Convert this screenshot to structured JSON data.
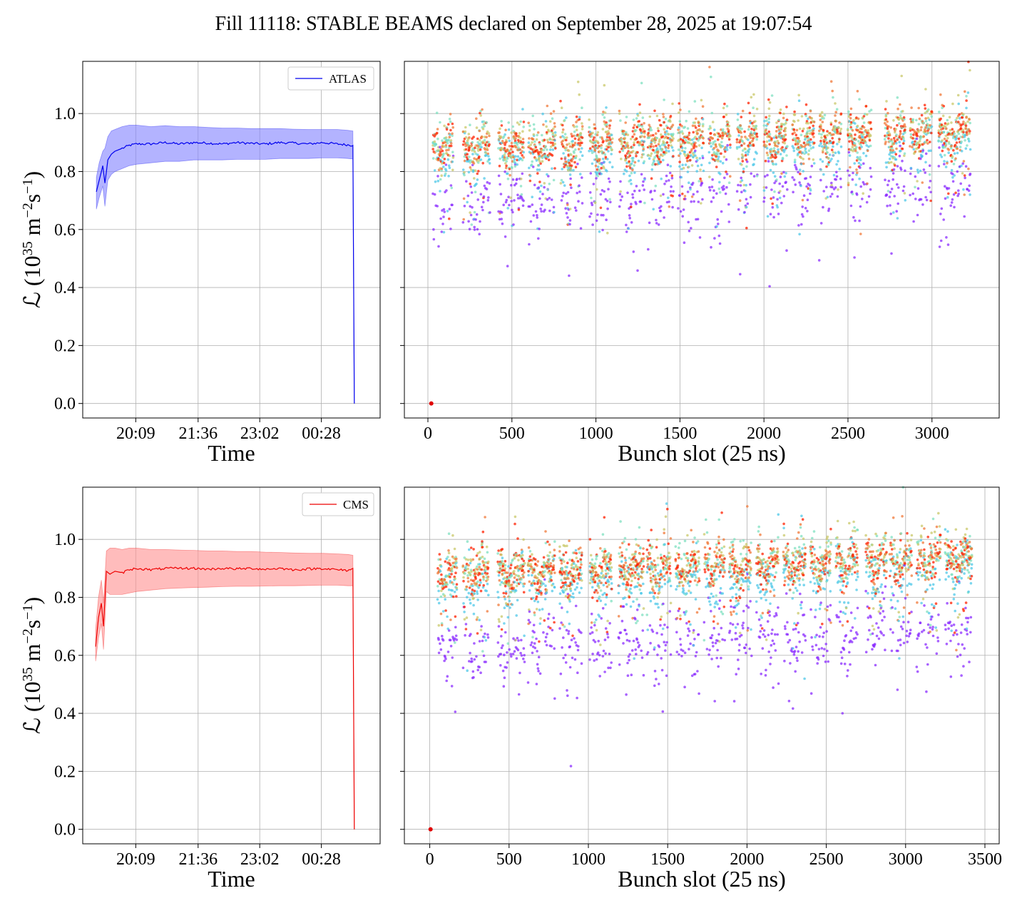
{
  "figure": {
    "title": "Fill 11118: STABLE BEAMS declared on September 28, 2025 at 19:07:54"
  },
  "chart_data": [
    {
      "id": "atlas-time",
      "type": "line",
      "xlabel": "Time",
      "ylabel": "ℒ (10^35 m^−2s^−1)",
      "ylabel_parts": {
        "main": "ℒ (10",
        "sup1": "35",
        "mid": " m",
        "sup2": "−2",
        "mid2": "s",
        "sup3": "−1",
        "end": ")"
      },
      "x_ticks": [
        "20:09",
        "21:36",
        "23:02",
        "00:28"
      ],
      "x_tick_minutes": [
        1209,
        1296,
        1382,
        1468
      ],
      "xlim_minutes": [
        1135,
        1550
      ],
      "ylim": [
        -0.05,
        1.18
      ],
      "y_ticks": [
        "0.0",
        "0.2",
        "0.4",
        "0.6",
        "0.8",
        "1.0"
      ],
      "y_tick_values": [
        0.0,
        0.2,
        0.4,
        0.6,
        0.8,
        1.0
      ],
      "grid": true,
      "legend": {
        "label": "ATLAS",
        "placement": "top-right"
      },
      "series": [
        {
          "name": "ATLAS",
          "color": "#0000ee",
          "band_color": "#8080ff",
          "x_minutes": [
            1154,
            1158,
            1163,
            1166,
            1170,
            1175,
            1180,
            1190,
            1200,
            1210,
            1230,
            1250,
            1270,
            1290,
            1310,
            1330,
            1350,
            1370,
            1390,
            1410,
            1430,
            1450,
            1470,
            1490,
            1505,
            1512,
            1514
          ],
          "y": [
            0.73,
            0.77,
            0.82,
            0.76,
            0.84,
            0.86,
            0.87,
            0.88,
            0.89,
            0.895,
            0.895,
            0.9,
            0.895,
            0.9,
            0.898,
            0.895,
            0.9,
            0.897,
            0.895,
            0.9,
            0.898,
            0.895,
            0.9,
            0.895,
            0.892,
            0.89,
            0.0
          ],
          "band_upper": [
            0.78,
            0.83,
            0.87,
            0.88,
            0.92,
            0.94,
            0.945,
            0.955,
            0.96,
            0.96,
            0.955,
            0.958,
            0.955,
            0.955,
            0.952,
            0.95,
            0.95,
            0.948,
            0.948,
            0.948,
            0.946,
            0.945,
            0.945,
            0.945,
            0.942,
            0.94,
            0.0
          ],
          "band_lower": [
            0.67,
            0.71,
            0.75,
            0.68,
            0.77,
            0.79,
            0.8,
            0.81,
            0.82,
            0.825,
            0.83,
            0.835,
            0.835,
            0.84,
            0.84,
            0.84,
            0.842,
            0.842,
            0.842,
            0.845,
            0.845,
            0.845,
            0.847,
            0.847,
            0.845,
            0.843,
            0.0
          ]
        }
      ]
    },
    {
      "id": "atlas-bunch",
      "type": "scatter",
      "xlabel": "Bunch slot (25 ns)",
      "x_ticks": [
        "0",
        "500",
        "1000",
        "1500",
        "2000",
        "2500",
        "3000"
      ],
      "x_tick_values": [
        0,
        500,
        1000,
        1500,
        2000,
        2500,
        3000
      ],
      "xlim": [
        -140,
        3400
      ],
      "ylim": [
        -0.05,
        1.18
      ],
      "grid": true,
      "x_range_filled": [
        30,
        3230
      ],
      "trains": [
        [
          30,
          150
        ],
        [
          210,
          370
        ],
        [
          420,
          570
        ],
        [
          600,
          760
        ],
        [
          790,
          920
        ],
        [
          960,
          1100
        ],
        [
          1140,
          1290
        ],
        [
          1310,
          1460
        ],
        [
          1490,
          1640
        ],
        [
          1670,
          1800
        ],
        [
          1840,
          1960
        ],
        [
          2000,
          2140
        ],
        [
          2170,
          2300
        ],
        [
          2330,
          2460
        ],
        [
          2500,
          2640
        ],
        [
          2720,
          2840
        ],
        [
          2870,
          3000
        ],
        [
          3040,
          3230
        ]
      ],
      "color_scale": [
        "#8000ff",
        "#4aa3f0",
        "#50e0d0",
        "#9ad08a",
        "#f08a40",
        "#ff2000"
      ],
      "series": [
        {
          "name": "",
          "color": "#8b2cff",
          "mean": 0.71,
          "spread": 0.12
        },
        {
          "name": "",
          "color": "#4fc8e8",
          "mean": 0.85,
          "spread": 0.1
        },
        {
          "name": "",
          "color": "#7fe0c0",
          "mean": 0.9,
          "spread": 0.09
        },
        {
          "name": "",
          "color": "#c9c86a",
          "mean": 0.9,
          "spread": 0.08
        },
        {
          "name": "",
          "color": "#f07838",
          "mean": 0.9,
          "spread": 0.08
        },
        {
          "name": "",
          "color": "#ff2000",
          "mean": 0.89,
          "spread": 0.08
        }
      ],
      "origin_point": {
        "x": 20,
        "y": 0.0
      }
    },
    {
      "id": "cms-time",
      "type": "line",
      "xlabel": "Time",
      "ylabel": "ℒ (10^35 m^−2s^−1)",
      "x_ticks": [
        "20:09",
        "21:36",
        "23:02",
        "00:28"
      ],
      "x_tick_minutes": [
        1209,
        1296,
        1382,
        1468
      ],
      "xlim_minutes": [
        1135,
        1550
      ],
      "ylim": [
        -0.05,
        1.18
      ],
      "y_ticks": [
        "0.0",
        "0.2",
        "0.4",
        "0.6",
        "0.8",
        "1.0"
      ],
      "y_tick_values": [
        0.0,
        0.2,
        0.4,
        0.6,
        0.8,
        1.0
      ],
      "grid": true,
      "legend": {
        "label": "CMS",
        "placement": "top-right"
      },
      "series": [
        {
          "name": "CMS",
          "color": "#ee0000",
          "band_color": "#ff9090",
          "x_minutes": [
            1153,
            1157,
            1161,
            1164,
            1168,
            1173,
            1180,
            1190,
            1200,
            1210,
            1230,
            1250,
            1270,
            1290,
            1310,
            1330,
            1350,
            1370,
            1390,
            1410,
            1430,
            1450,
            1470,
            1490,
            1505,
            1512,
            1514
          ],
          "y": [
            0.63,
            0.73,
            0.78,
            0.7,
            0.89,
            0.88,
            0.89,
            0.885,
            0.895,
            0.9,
            0.895,
            0.9,
            0.9,
            0.9,
            0.897,
            0.9,
            0.898,
            0.9,
            0.897,
            0.9,
            0.895,
            0.898,
            0.9,
            0.895,
            0.893,
            0.9,
            0.0
          ],
          "band_upper": [
            0.69,
            0.8,
            0.86,
            0.78,
            0.96,
            0.97,
            0.97,
            0.965,
            0.97,
            0.97,
            0.965,
            0.965,
            0.963,
            0.962,
            0.96,
            0.96,
            0.958,
            0.958,
            0.956,
            0.955,
            0.953,
            0.952,
            0.952,
            0.95,
            0.948,
            0.945,
            0.0
          ],
          "band_lower": [
            0.58,
            0.66,
            0.71,
            0.62,
            0.82,
            0.81,
            0.81,
            0.81,
            0.815,
            0.82,
            0.825,
            0.83,
            0.832,
            0.834,
            0.835,
            0.837,
            0.838,
            0.838,
            0.839,
            0.84,
            0.84,
            0.841,
            0.842,
            0.842,
            0.84,
            0.84,
            0.0
          ]
        }
      ]
    },
    {
      "id": "cms-bunch",
      "type": "scatter",
      "xlabel": "Bunch slot (25 ns)",
      "x_ticks": [
        "0",
        "500",
        "1000",
        "1500",
        "2000",
        "2500",
        "3000",
        "3500"
      ],
      "x_tick_values": [
        0,
        500,
        1000,
        1500,
        2000,
        2500,
        3000,
        3500
      ],
      "xlim": [
        -160,
        3590
      ],
      "ylim": [
        -0.05,
        1.18
      ],
      "grid": true,
      "x_range_filled": [
        50,
        3420
      ],
      "trains": [
        [
          50,
          170
        ],
        [
          210,
          370
        ],
        [
          430,
          600
        ],
        [
          620,
          790
        ],
        [
          820,
          960
        ],
        [
          1010,
          1150
        ],
        [
          1190,
          1350
        ],
        [
          1370,
          1520
        ],
        [
          1550,
          1700
        ],
        [
          1730,
          1860
        ],
        [
          1890,
          2030
        ],
        [
          2060,
          2200
        ],
        [
          2230,
          2370
        ],
        [
          2400,
          2530
        ],
        [
          2560,
          2700
        ],
        [
          2750,
          2880
        ],
        [
          2900,
          3040
        ],
        [
          3070,
          3220
        ],
        [
          3250,
          3420
        ]
      ],
      "color_scale": [
        "#8000ff",
        "#4aa3f0",
        "#50e0d0",
        "#9ad08a",
        "#f08a40",
        "#ff2000"
      ],
      "series": [
        {
          "name": "",
          "color": "#8b2cff",
          "mean": 0.64,
          "spread": 0.12
        },
        {
          "name": "",
          "color": "#4fc8e8",
          "mean": 0.84,
          "spread": 0.1
        },
        {
          "name": "",
          "color": "#7fe0c0",
          "mean": 0.9,
          "spread": 0.09
        },
        {
          "name": "",
          "color": "#c9c86a",
          "mean": 0.9,
          "spread": 0.08
        },
        {
          "name": "",
          "color": "#f07838",
          "mean": 0.9,
          "spread": 0.08
        },
        {
          "name": "",
          "color": "#ff2000",
          "mean": 0.89,
          "spread": 0.08
        }
      ],
      "origin_point": {
        "x": 5,
        "y": 0.0
      }
    }
  ]
}
